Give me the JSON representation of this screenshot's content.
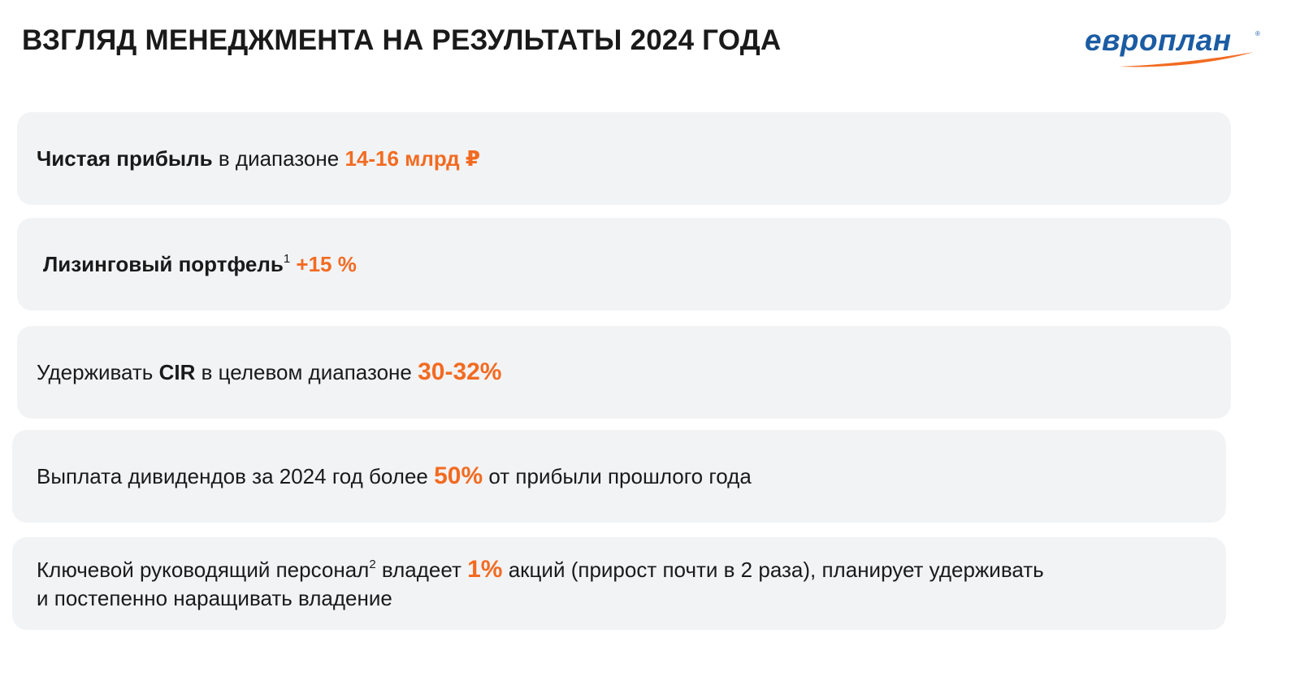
{
  "header": {
    "title": "ВЗГЛЯД МЕНЕДЖМЕНТА НА РЕЗУЛЬТАТЫ 2024 ГОДА"
  },
  "logo": {
    "text": "европлан",
    "reg_mark": "®",
    "colors": {
      "text": "#1b5ca3",
      "swoosh": "#f26b21"
    }
  },
  "theme": {
    "accent": "#f26b21",
    "card_background": "#f2f3f5",
    "text": "#1a1a1a"
  },
  "items": [
    {
      "bold": "Чистая прибыль",
      "text": " в диапазоне ",
      "highlight": "14-16 млрд ₽"
    },
    {
      "bold": "Лизинговый портфель",
      "footnote": "1",
      "highlight": "+15 %"
    },
    {
      "before": "Удерживать ",
      "bold": "CIR",
      "middle": " в целевом диапазоне ",
      "highlight": "30-32%"
    },
    {
      "before": "Выплата дивидендов за 2024 год более ",
      "highlight": "50%",
      "after": " от прибыли прошлого года"
    },
    {
      "before": "Ключевой руководящий персонал",
      "footnote": "2",
      "middle": " владеет ",
      "highlight": "1%",
      "after": " акций (прирост почти в 2 раза), планирует удерживать",
      "line2": "и постепенно наращивать владение"
    }
  ]
}
